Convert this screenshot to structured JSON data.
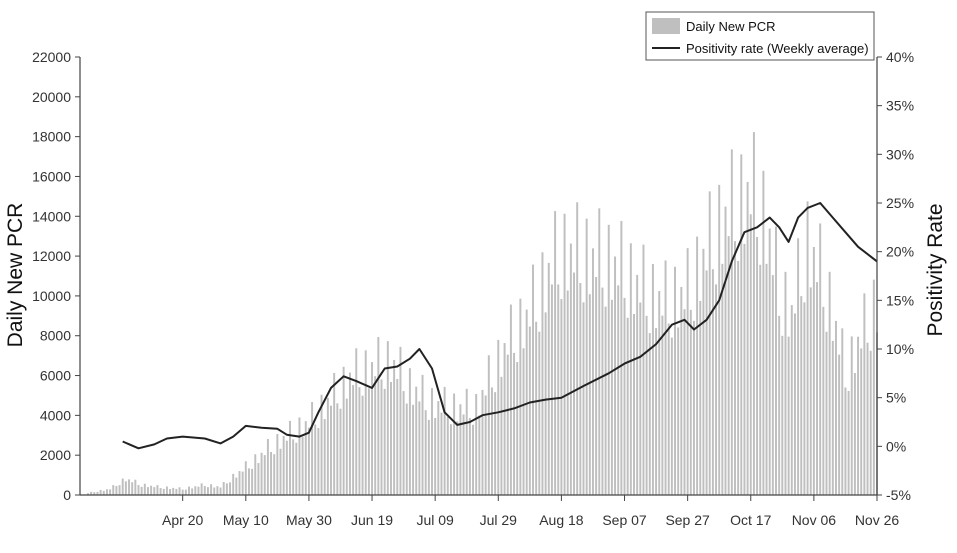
{
  "chart_data": {
    "type": "bar",
    "combo": "bar+line (dual y-axis)",
    "ylabel": "Daily New PCR",
    "y2label": "Positivity Rate",
    "ylim": [
      0,
      22000
    ],
    "y2lim": [
      -5,
      40
    ],
    "yticks": [
      0,
      2000,
      4000,
      6000,
      8000,
      10000,
      12000,
      14000,
      16000,
      18000,
      20000,
      22000
    ],
    "y2ticks": [
      "-5%",
      "0%",
      "5%",
      "10%",
      "15%",
      "20%",
      "25%",
      "30%",
      "35%",
      "40%"
    ],
    "xticks": [
      "Apr 20",
      "May 10",
      "May 30",
      "Jun 19",
      "Jul 09",
      "Jul 29",
      "Aug 18",
      "Sep 07",
      "Sep 27",
      "Oct 17",
      "Nov 06",
      "Nov 26"
    ],
    "x_start_date": "2020-03-21",
    "x_end_date": "2020-11-26",
    "legend_position": "top-right",
    "grid": false,
    "colors": {
      "bars": "#bfbfbf",
      "line": "#222222"
    },
    "series": [
      {
        "name": "Daily New PCR",
        "kind": "bar",
        "axis": "left",
        "anchors": [
          [
            "2020-03-21",
            100
          ],
          [
            "2020-03-28",
            300
          ],
          [
            "2020-04-02",
            800
          ],
          [
            "2020-04-07",
            500
          ],
          [
            "2020-04-12",
            400
          ],
          [
            "2020-04-20",
            300
          ],
          [
            "2020-04-27",
            500
          ],
          [
            "2020-05-02",
            400
          ],
          [
            "2020-05-06",
            900
          ],
          [
            "2020-05-12",
            1600
          ],
          [
            "2020-05-18",
            2400
          ],
          [
            "2020-05-24",
            3000
          ],
          [
            "2020-05-30",
            3600
          ],
          [
            "2020-06-05",
            4600
          ],
          [
            "2020-06-12",
            5800
          ],
          [
            "2020-06-19",
            6300
          ],
          [
            "2020-06-25",
            6600
          ],
          [
            "2020-07-01",
            5400
          ],
          [
            "2020-07-07",
            4600
          ],
          [
            "2020-07-11",
            4400
          ],
          [
            "2020-07-16",
            4300
          ],
          [
            "2020-07-22",
            4300
          ],
          [
            "2020-07-27",
            6000
          ],
          [
            "2020-08-01",
            7500
          ],
          [
            "2020-08-08",
            9000
          ],
          [
            "2020-08-14",
            11000
          ],
          [
            "2020-08-18",
            12000
          ],
          [
            "2020-08-25",
            11800
          ],
          [
            "2020-09-02",
            11500
          ],
          [
            "2020-09-07",
            11000
          ],
          [
            "2020-09-14",
            10000
          ],
          [
            "2020-09-20",
            9500
          ],
          [
            "2020-09-27",
            10000
          ],
          [
            "2020-10-03",
            12000
          ],
          [
            "2020-10-08",
            13500
          ],
          [
            "2020-10-14",
            14500
          ],
          [
            "2020-10-17",
            15000
          ],
          [
            "2020-10-22",
            13500
          ],
          [
            "2020-10-26",
            10000
          ],
          [
            "2020-10-30",
            9000
          ],
          [
            "2020-11-04",
            12500
          ],
          [
            "2020-11-08",
            11000
          ],
          [
            "2020-11-12",
            9000
          ],
          [
            "2020-11-16",
            6000
          ],
          [
            "2020-11-20",
            7500
          ],
          [
            "2020-11-26",
            9500
          ]
        ]
      },
      {
        "name": "Positivity rate (Weekly average)",
        "kind": "line",
        "axis": "right",
        "points": [
          [
            "2020-04-01",
            0.5
          ],
          [
            "2020-04-06",
            -0.2
          ],
          [
            "2020-04-11",
            0.2
          ],
          [
            "2020-04-15",
            0.8
          ],
          [
            "2020-04-20",
            1.0
          ],
          [
            "2020-04-27",
            0.8
          ],
          [
            "2020-05-02",
            0.3
          ],
          [
            "2020-05-06",
            1.0
          ],
          [
            "2020-05-10",
            2.1
          ],
          [
            "2020-05-15",
            1.9
          ],
          [
            "2020-05-20",
            1.8
          ],
          [
            "2020-05-23",
            1.2
          ],
          [
            "2020-05-27",
            1.0
          ],
          [
            "2020-05-30",
            1.4
          ],
          [
            "2020-06-02",
            3.5
          ],
          [
            "2020-06-06",
            6.0
          ],
          [
            "2020-06-10",
            7.2
          ],
          [
            "2020-06-14",
            6.7
          ],
          [
            "2020-06-19",
            6.0
          ],
          [
            "2020-06-23",
            8.0
          ],
          [
            "2020-06-27",
            8.2
          ],
          [
            "2020-07-01",
            9.0
          ],
          [
            "2020-07-04",
            10.0
          ],
          [
            "2020-07-08",
            8.0
          ],
          [
            "2020-07-12",
            3.5
          ],
          [
            "2020-07-16",
            2.2
          ],
          [
            "2020-07-20",
            2.5
          ],
          [
            "2020-07-24",
            3.2
          ],
          [
            "2020-07-29",
            3.5
          ],
          [
            "2020-08-03",
            3.9
          ],
          [
            "2020-08-08",
            4.5
          ],
          [
            "2020-08-13",
            4.8
          ],
          [
            "2020-08-18",
            5.0
          ],
          [
            "2020-08-25",
            6.2
          ],
          [
            "2020-09-02",
            7.5
          ],
          [
            "2020-09-07",
            8.5
          ],
          [
            "2020-09-12",
            9.2
          ],
          [
            "2020-09-17",
            10.5
          ],
          [
            "2020-09-22",
            12.5
          ],
          [
            "2020-09-26",
            13.0
          ],
          [
            "2020-09-29",
            12.0
          ],
          [
            "2020-10-03",
            13.0
          ],
          [
            "2020-10-07",
            15.0
          ],
          [
            "2020-10-11",
            19.0
          ],
          [
            "2020-10-15",
            22.0
          ],
          [
            "2020-10-19",
            22.5
          ],
          [
            "2020-10-23",
            23.5
          ],
          [
            "2020-10-26",
            22.5
          ],
          [
            "2020-10-29",
            21.0
          ],
          [
            "2020-11-01",
            23.5
          ],
          [
            "2020-11-04",
            24.5
          ],
          [
            "2020-11-08",
            25.0
          ],
          [
            "2020-11-12",
            23.5
          ],
          [
            "2020-11-16",
            22.0
          ],
          [
            "2020-11-20",
            20.5
          ],
          [
            "2020-11-26",
            19.0
          ]
        ]
      }
    ]
  }
}
